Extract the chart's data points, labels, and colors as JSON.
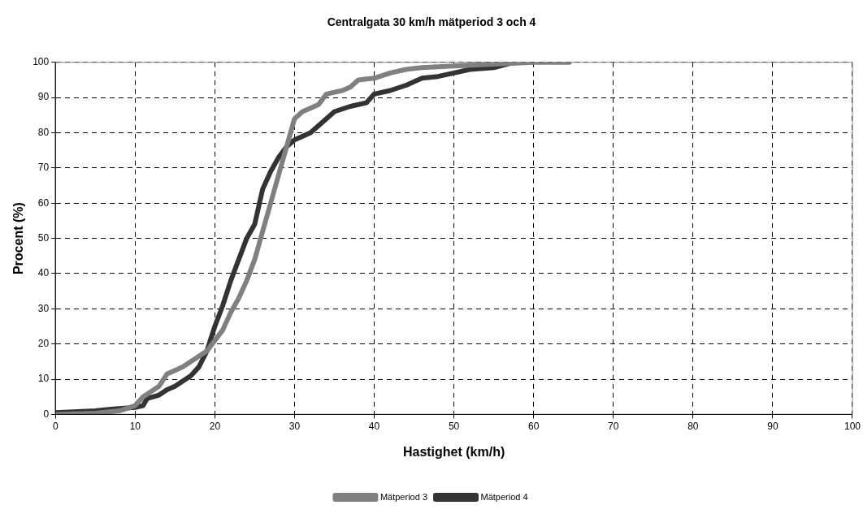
{
  "chart_data": {
    "type": "line",
    "title": "Centralgata 30 km/h mätperiod 3 och 4",
    "xlabel": "Hastighet (km/h)",
    "ylabel": "Procent (%)",
    "xlim": [
      0,
      100
    ],
    "xticks": [
      0,
      10,
      20,
      30,
      40,
      50,
      60,
      70,
      80,
      90,
      100
    ],
    "ylim": [
      0,
      100
    ],
    "yticks": [
      0,
      10,
      20,
      30,
      40,
      50,
      60,
      70,
      80,
      90,
      100
    ],
    "grid": true,
    "legend": "bottom",
    "marker": "none",
    "line_style": "solid",
    "series": [
      {
        "name": "Mätperiod 3",
        "color": "#808080",
        "x": [
          0,
          5,
          8,
          10,
          11,
          12,
          13,
          14,
          15,
          16,
          17,
          18,
          19,
          20,
          21,
          22,
          23,
          24,
          25,
          26,
          27,
          28,
          29,
          30,
          31,
          32,
          33,
          34,
          35,
          36,
          37,
          38,
          40,
          42,
          44,
          46,
          50,
          55,
          60,
          64.5
        ],
        "values": [
          0,
          0.3,
          1,
          2.5,
          5,
          6.5,
          8,
          11.5,
          12.5,
          13.5,
          15,
          16.5,
          18,
          21,
          24,
          29,
          33,
          38,
          44,
          52,
          60,
          68,
          76,
          84,
          86,
          87,
          88,
          91,
          91.5,
          92,
          93,
          95,
          95.5,
          97,
          98,
          98.5,
          99,
          99.5,
          100,
          100
        ]
      },
      {
        "name": "Mätperiod 4",
        "color": "#333333",
        "x": [
          0,
          5,
          7,
          10,
          11,
          11.5,
          13,
          14,
          15,
          16,
          17,
          18,
          19,
          20,
          21,
          22,
          23,
          24,
          25,
          26,
          27,
          28,
          29,
          30,
          32,
          34,
          35,
          37,
          39,
          40,
          42,
          44,
          46,
          48,
          50,
          52,
          55,
          57.5
        ],
        "values": [
          0.5,
          1,
          1.5,
          2,
          2.5,
          4.5,
          5.5,
          7,
          8,
          9.5,
          11,
          13.5,
          18,
          25,
          31,
          38,
          44,
          50,
          54,
          64,
          69,
          73,
          76,
          78,
          80,
          84,
          86,
          87.5,
          88.5,
          91,
          92,
          93.5,
          95.5,
          96,
          97,
          98,
          98.5,
          100
        ]
      }
    ]
  }
}
